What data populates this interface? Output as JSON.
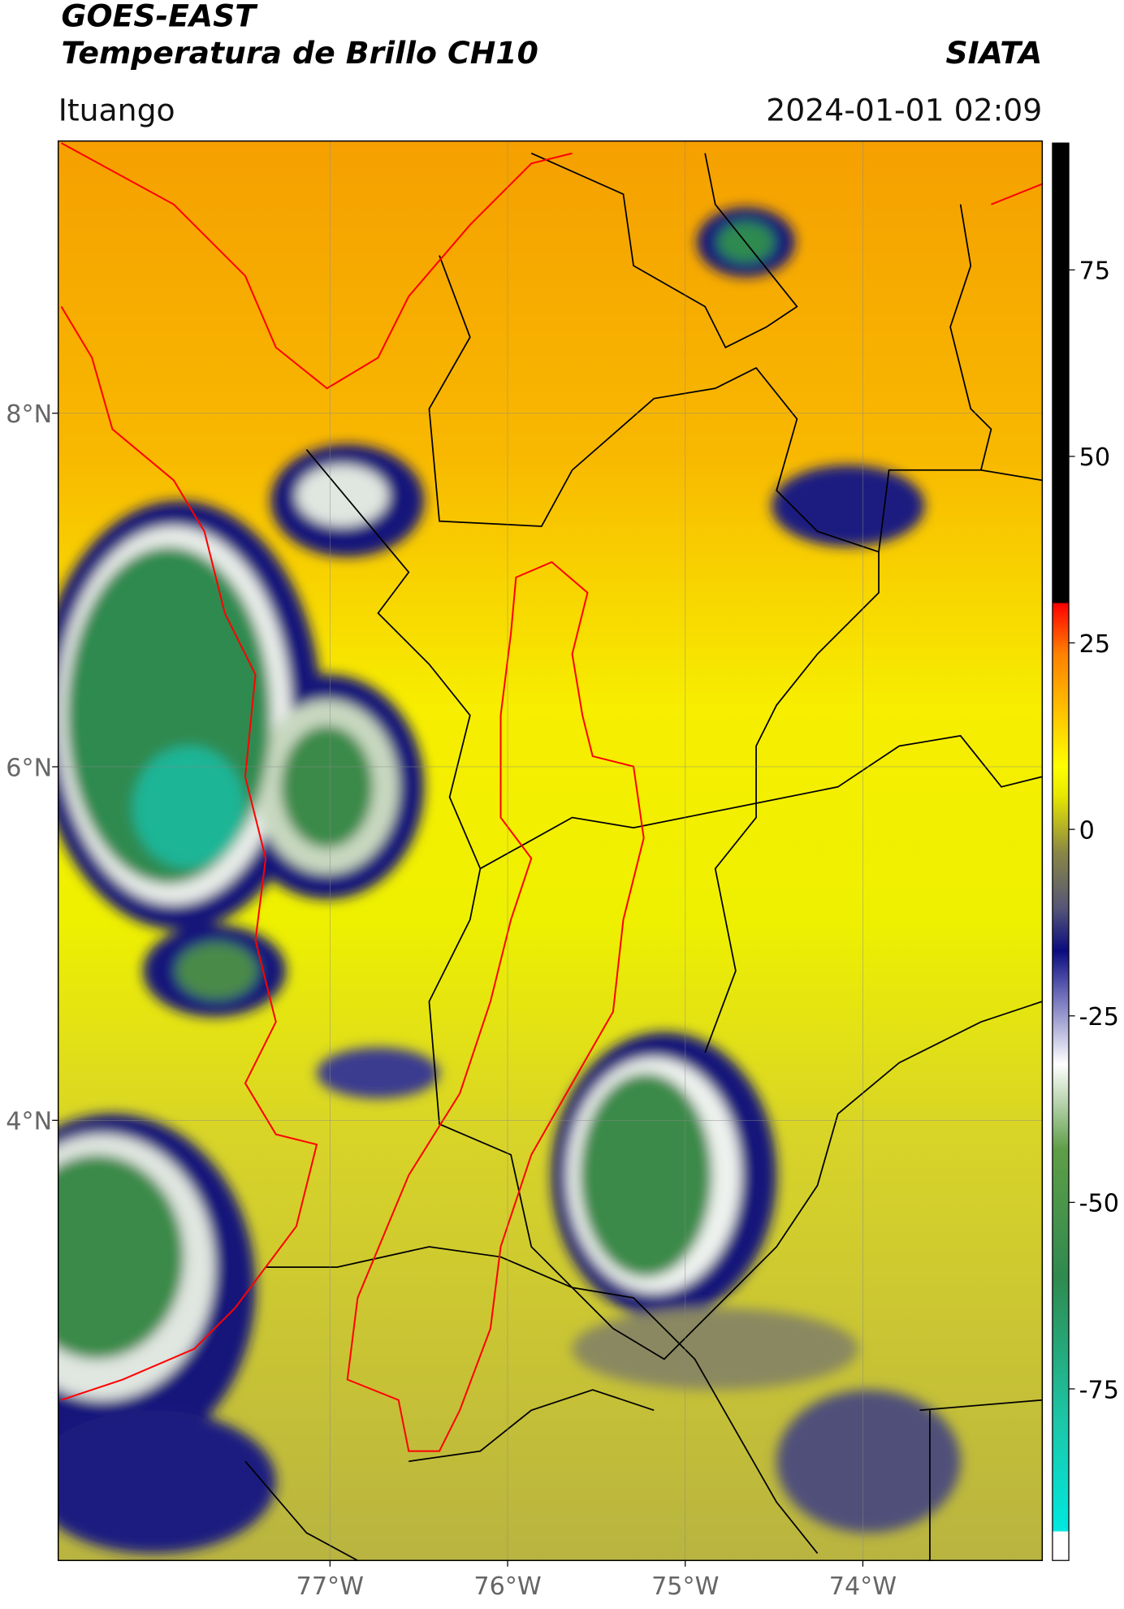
{
  "header": {
    "title": "GOES-EAST",
    "subtitle": "Temperatura de Brillo CH10",
    "organization": "SIATA",
    "location": "Ituango",
    "datetime": "2024-01-01 02:09"
  },
  "map": {
    "lon_range": [
      -78.53,
      -72.99
    ],
    "lat_range": [
      1.51,
      9.54
    ],
    "lat_ticks": [
      {
        "value": 8,
        "label": "8°N"
      },
      {
        "value": 6,
        "label": "6°N"
      },
      {
        "value": 4,
        "label": "4°N"
      }
    ],
    "lon_ticks": [
      {
        "value": -77,
        "label": "77°W"
      },
      {
        "value": -76,
        "label": "76°W"
      },
      {
        "value": -75,
        "label": "75°W"
      },
      {
        "value": -74,
        "label": "74°W"
      }
    ]
  },
  "colorbar": {
    "range": [
      -98,
      92
    ],
    "ticks": [
      75,
      50,
      25,
      0,
      -25,
      -50,
      -75
    ]
  }
}
